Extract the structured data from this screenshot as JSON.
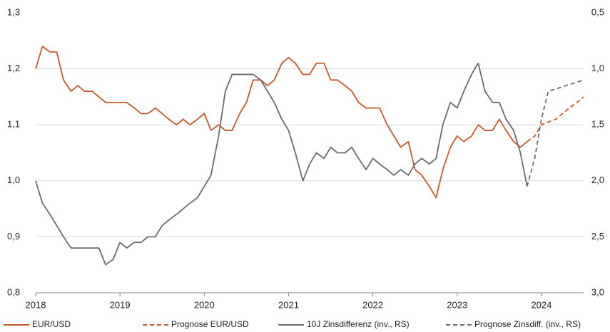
{
  "chart_data": {
    "type": "line",
    "x": [
      2018,
      2018.08,
      2018.17,
      2018.25,
      2018.33,
      2018.42,
      2018.5,
      2018.58,
      2018.67,
      2018.75,
      2018.83,
      2018.92,
      2019,
      2019.08,
      2019.17,
      2019.25,
      2019.33,
      2019.42,
      2019.5,
      2019.58,
      2019.67,
      2019.75,
      2019.83,
      2019.92,
      2020,
      2020.08,
      2020.17,
      2020.25,
      2020.33,
      2020.42,
      2020.5,
      2020.58,
      2020.67,
      2020.75,
      2020.83,
      2020.92,
      2021,
      2021.08,
      2021.17,
      2021.25,
      2021.33,
      2021.42,
      2021.5,
      2021.58,
      2021.67,
      2021.75,
      2021.83,
      2021.92,
      2022,
      2022.08,
      2022.17,
      2022.25,
      2022.33,
      2022.42,
      2022.5,
      2022.58,
      2022.67,
      2022.75,
      2022.83,
      2022.92,
      2023,
      2023.08,
      2023.17,
      2023.25,
      2023.33,
      2023.42,
      2023.5,
      2023.58,
      2023.67,
      2023.75,
      2023.83,
      2023.92,
      2024,
      2024.08,
      2024.17,
      2024.25,
      2024.33,
      2024.42,
      2024.5
    ],
    "series": [
      {
        "name": "EUR/USD",
        "color": "#c55a28",
        "dashed": false,
        "axis": "y",
        "values": [
          1.2,
          1.24,
          1.23,
          1.23,
          1.18,
          1.16,
          1.17,
          1.16,
          1.16,
          1.15,
          1.14,
          1.14,
          1.14,
          1.14,
          1.13,
          1.12,
          1.12,
          1.13,
          1.12,
          1.11,
          1.1,
          1.11,
          1.1,
          1.11,
          1.12,
          1.09,
          1.1,
          1.09,
          1.09,
          1.12,
          1.14,
          1.18,
          1.18,
          1.17,
          1.18,
          1.21,
          1.22,
          1.21,
          1.19,
          1.19,
          1.21,
          1.21,
          1.18,
          1.18,
          1.17,
          1.16,
          1.14,
          1.13,
          1.13,
          1.13,
          1.1,
          1.08,
          1.06,
          1.07,
          1.02,
          1.01,
          0.99,
          0.97,
          1.02,
          1.06,
          1.08,
          1.07,
          1.08,
          1.1,
          1.09,
          1.09,
          1.11,
          1.09,
          1.07,
          1.06,
          1.07,
          null,
          null,
          null,
          null,
          null,
          null,
          null,
          null
        ]
      },
      {
        "name": "Prognose EUR/USD",
        "color": "#c55a28",
        "dashed": true,
        "axis": "y",
        "values": [
          null,
          null,
          null,
          null,
          null,
          null,
          null,
          null,
          null,
          null,
          null,
          null,
          null,
          null,
          null,
          null,
          null,
          null,
          null,
          null,
          null,
          null,
          null,
          null,
          null,
          null,
          null,
          null,
          null,
          null,
          null,
          null,
          null,
          null,
          null,
          null,
          null,
          null,
          null,
          null,
          null,
          null,
          null,
          null,
          null,
          null,
          null,
          null,
          null,
          null,
          null,
          null,
          null,
          null,
          null,
          null,
          null,
          null,
          null,
          null,
          null,
          null,
          null,
          null,
          null,
          null,
          null,
          null,
          null,
          null,
          1.07,
          1.08,
          1.1,
          1.105,
          1.11,
          1.12,
          1.13,
          1.14,
          1.15
        ]
      },
      {
        "name": "10J Zinsdifferenz (inv., RS)",
        "color": "#6b6b6b",
        "dashed": false,
        "axis": "y2",
        "values": [
          2.0,
          2.2,
          2.3,
          2.4,
          2.5,
          2.6,
          2.6,
          2.6,
          2.6,
          2.6,
          2.75,
          2.7,
          2.55,
          2.6,
          2.55,
          2.55,
          2.5,
          2.5,
          2.4,
          2.35,
          2.3,
          2.25,
          2.2,
          2.15,
          2.05,
          1.95,
          1.6,
          1.2,
          1.05,
          1.05,
          1.05,
          1.05,
          1.1,
          1.2,
          1.3,
          1.45,
          1.55,
          1.75,
          2.0,
          1.85,
          1.75,
          1.8,
          1.7,
          1.75,
          1.75,
          1.7,
          1.8,
          1.9,
          1.8,
          1.85,
          1.9,
          1.95,
          1.9,
          1.95,
          1.85,
          1.8,
          1.85,
          1.8,
          1.5,
          1.3,
          1.35,
          1.2,
          1.05,
          0.95,
          1.2,
          1.3,
          1.3,
          1.45,
          1.55,
          1.75,
          2.05,
          null,
          null,
          null,
          null,
          null,
          null,
          null,
          null
        ]
      },
      {
        "name": "Prognose Zinsdiff. (inv., RS)",
        "color": "#6b6b6b",
        "dashed": true,
        "axis": "y2",
        "values": [
          null,
          null,
          null,
          null,
          null,
          null,
          null,
          null,
          null,
          null,
          null,
          null,
          null,
          null,
          null,
          null,
          null,
          null,
          null,
          null,
          null,
          null,
          null,
          null,
          null,
          null,
          null,
          null,
          null,
          null,
          null,
          null,
          null,
          null,
          null,
          null,
          null,
          null,
          null,
          null,
          null,
          null,
          null,
          null,
          null,
          null,
          null,
          null,
          null,
          null,
          null,
          null,
          null,
          null,
          null,
          null,
          null,
          null,
          null,
          null,
          null,
          null,
          null,
          null,
          null,
          null,
          null,
          null,
          null,
          null,
          2.05,
          1.8,
          1.45,
          1.2,
          1.18,
          1.16,
          1.14,
          1.12,
          1.1
        ]
      }
    ],
    "xlim": [
      2018,
      2024.5
    ],
    "xticks": [
      2018,
      2019,
      2020,
      2021,
      2022,
      2023,
      2024
    ],
    "ylim": [
      0.8,
      1.3
    ],
    "yticks": [
      {
        "value": 0.8,
        "label": "0,8"
      },
      {
        "value": 0.9,
        "label": "0,9"
      },
      {
        "value": 1.0,
        "label": "1,0"
      },
      {
        "value": 1.1,
        "label": "1,1"
      },
      {
        "value": 1.2,
        "label": "1,2"
      },
      {
        "value": 1.3,
        "label": "1,3"
      }
    ],
    "y2lim": [
      3.0,
      0.5
    ],
    "y2ticks": [
      {
        "value": 3.0,
        "label": "3,0"
      },
      {
        "value": 2.5,
        "label": "2,5"
      },
      {
        "value": 2.0,
        "label": "2,0"
      },
      {
        "value": 1.5,
        "label": "1,5"
      },
      {
        "value": 1.0,
        "label": "1,0"
      },
      {
        "value": 0.5,
        "label": "0,5"
      }
    ],
    "grid": true,
    "legend": "bottom"
  }
}
